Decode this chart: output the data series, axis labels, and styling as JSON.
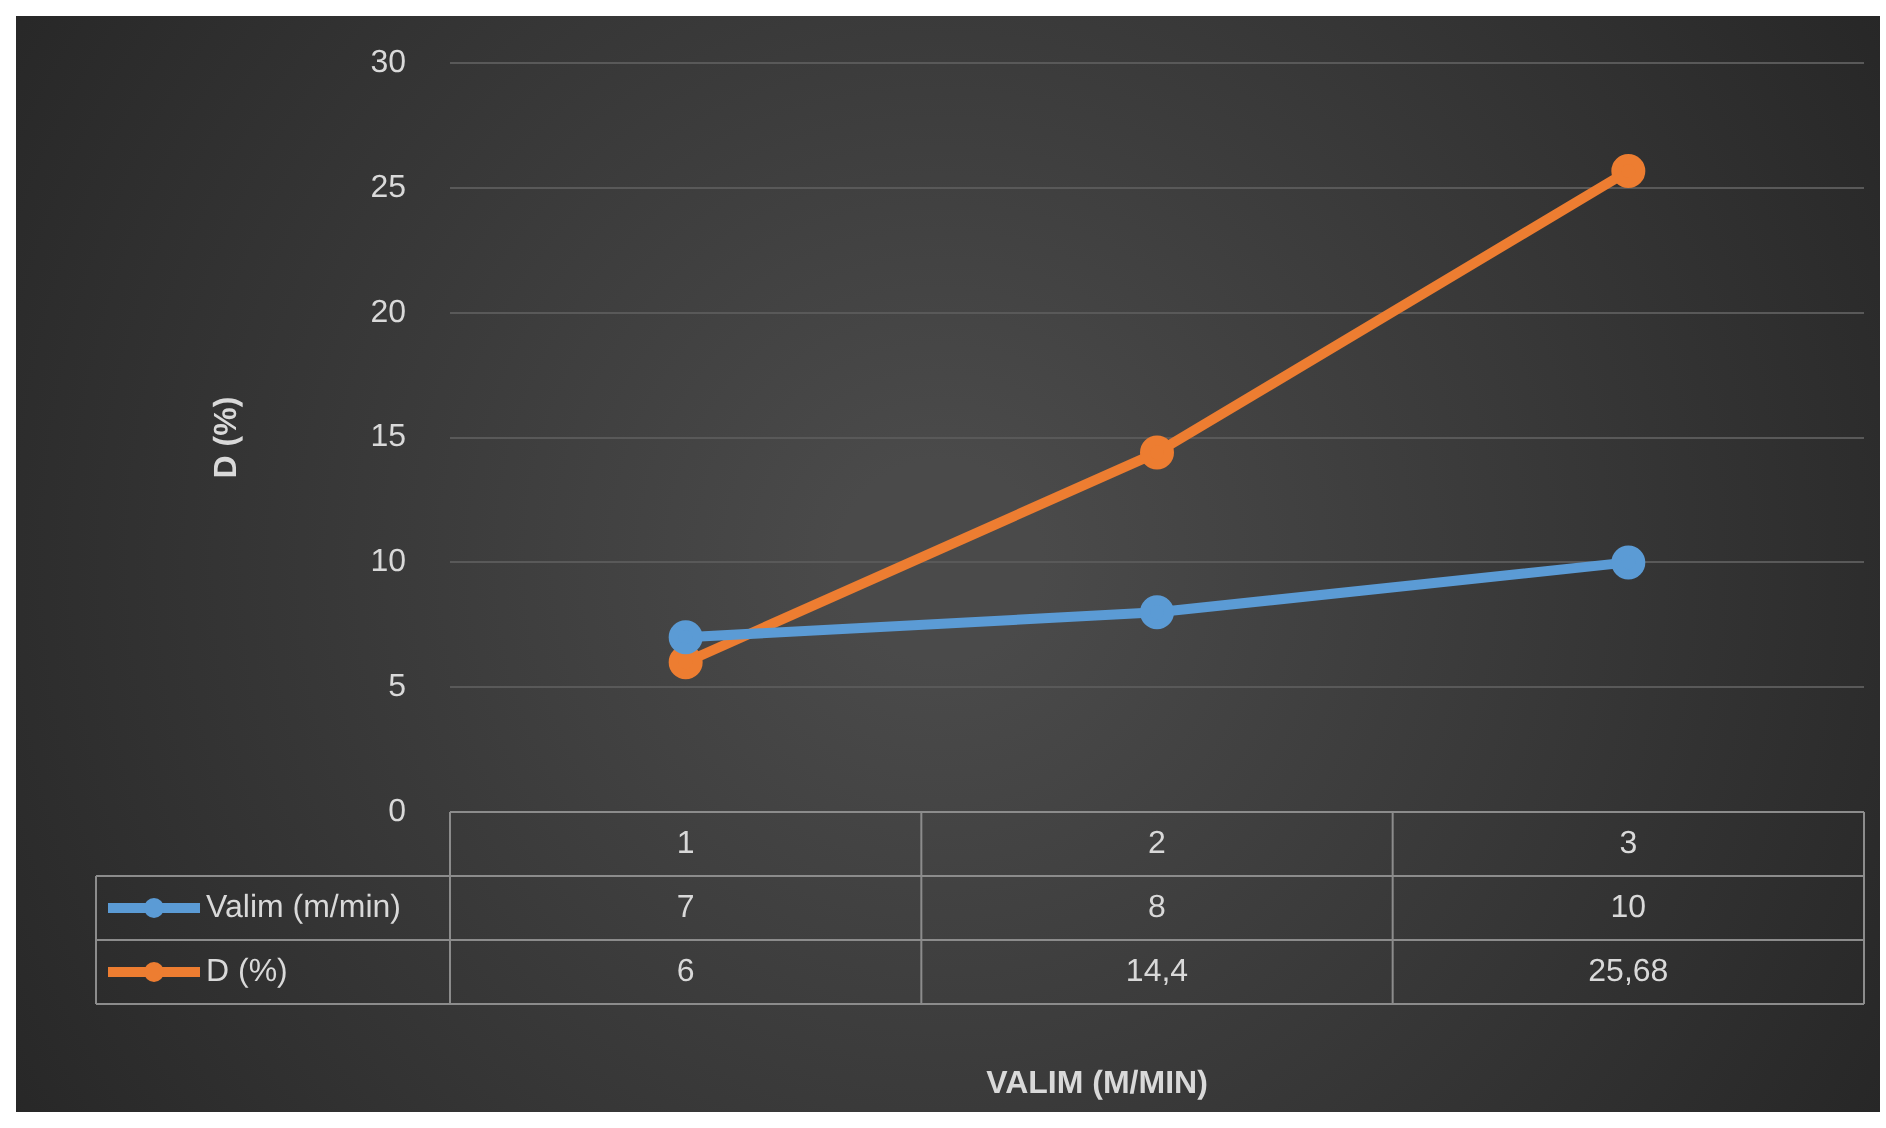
{
  "chart_data": {
    "type": "line",
    "categories": [
      "1",
      "2",
      "3"
    ],
    "annotations": [
      "VALIM (M/MIN)"
    ],
    "ylabel": "D (%)",
    "ylim": [
      0,
      30
    ],
    "yticks": [
      0,
      5,
      10,
      15,
      20,
      25,
      30
    ],
    "grid": "y",
    "legend": "bottom left",
    "marker": "circle",
    "line_style": "solid",
    "series": [
      {
        "name": "Valim (m/min)",
        "color": "#5b9bd5",
        "values": [
          7,
          8,
          10
        ],
        "value_labels": [
          "7",
          "8",
          "10"
        ]
      },
      {
        "name": "D (%)",
        "color": "#ed7d31",
        "values": [
          6,
          14.4,
          25.68
        ],
        "value_labels": [
          "6",
          "14,4",
          "25,68"
        ]
      }
    ]
  }
}
